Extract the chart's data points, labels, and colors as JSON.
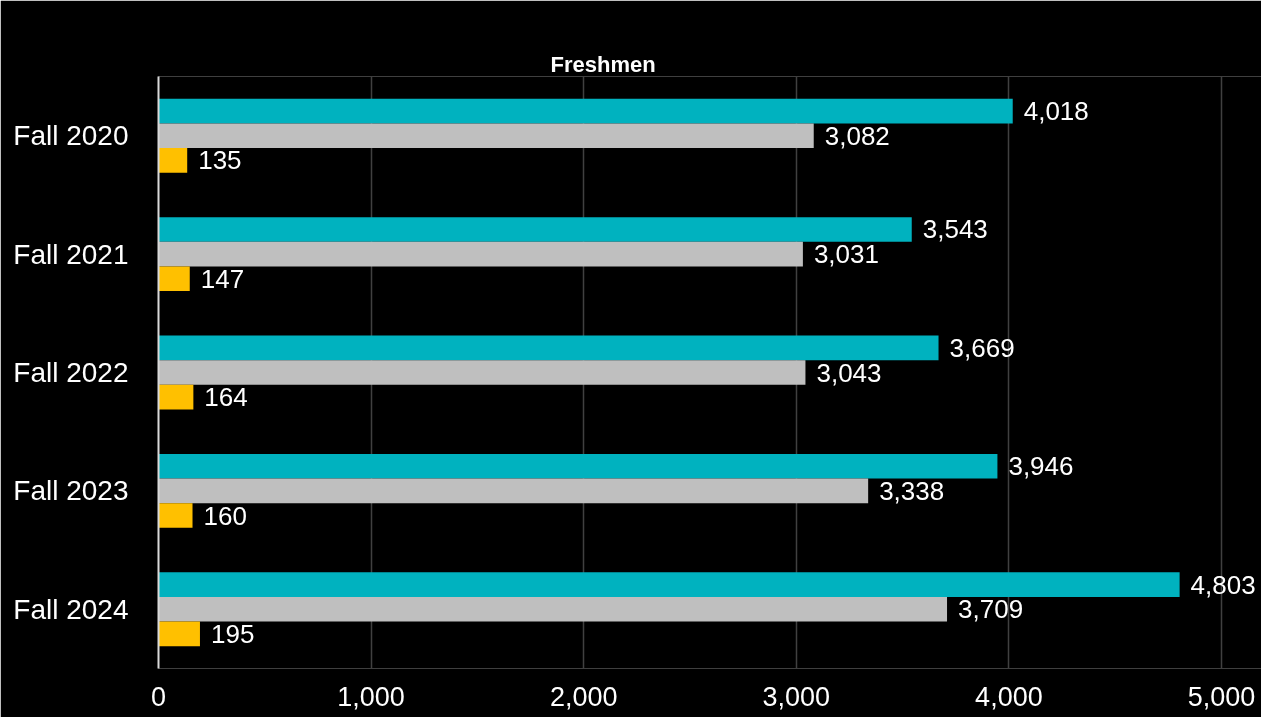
{
  "chart_data": {
    "type": "bar",
    "orientation": "horizontal",
    "title": "Freshmen",
    "categories": [
      "Fall 2020",
      "Fall 2021",
      "Fall 2022",
      "Fall 2023",
      "Fall 2024"
    ],
    "series": [
      {
        "color": "#00b2bf",
        "values": [
          4018,
          3543,
          3669,
          3946,
          4803
        ],
        "value_labels": [
          "4,018",
          "3,543",
          "3,669",
          "3,946",
          "4,803"
        ]
      },
      {
        "color": "#bfbfbf",
        "values": [
          3082,
          3031,
          3043,
          3338,
          3709
        ],
        "value_labels": [
          "3,082",
          "3,031",
          "3,043",
          "3,338",
          "3,709"
        ]
      },
      {
        "color": "#ffc000",
        "values": [
          135,
          147,
          164,
          160,
          195
        ],
        "value_labels": [
          "135",
          "147",
          "164",
          "160",
          "195"
        ]
      }
    ],
    "xlim": [
      0,
      5000
    ],
    "xticks": [
      0,
      {
        "value": 1000,
        "label": "1,000"
      },
      {
        "value": 2000,
        "label": "2,000"
      },
      {
        "value": 3000,
        "label": "3,000"
      },
      {
        "value": 4000,
        "label": "4,000"
      },
      {
        "value": 5000,
        "label": "5,000"
      }
    ],
    "grid": "x"
  }
}
